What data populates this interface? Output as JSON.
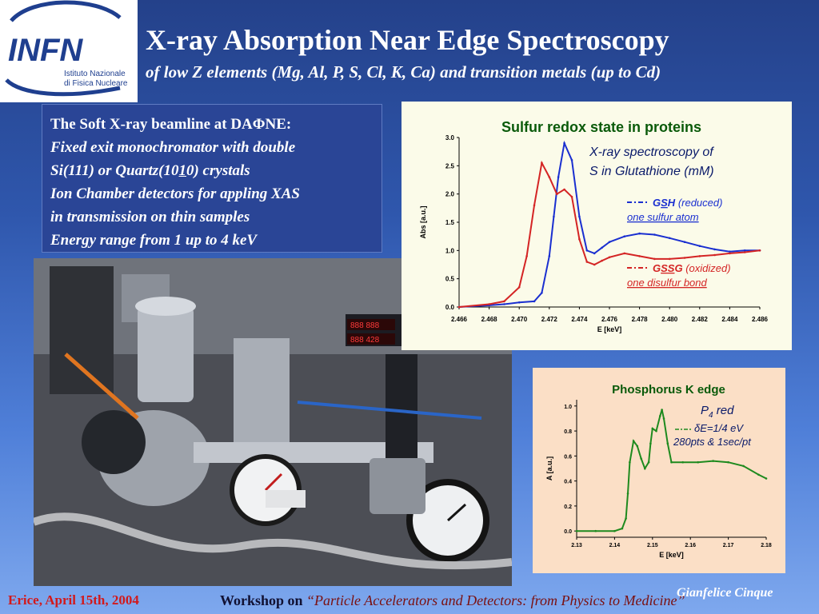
{
  "header": {
    "logo_text": "INFN",
    "logo_line1": "Istituto Nazionale",
    "logo_line2": "di Fisica Nucleare",
    "title": "X-ray Absorption Near Edge Spectroscopy",
    "subtitle": "of low Z elements (Mg, Al, P, S, Cl, K, Ca) and transition metals (up to Cd)"
  },
  "beamline": {
    "heading": "The Soft X-ray beamline at DAΦNE:",
    "line1": "Fixed exit monochromator with double",
    "line2_a": "Si(111) or Quartz(10",
    "line2_u": "1",
    "line2_b": "0) crystals",
    "line3": "Ion Chamber detectors for appling XAS",
    "line4": "in transmission on thin samples",
    "line5": "Energy range from 1 up to 4 keV"
  },
  "photo": {
    "panel1": "888 888",
    "panel2": "888 428"
  },
  "charts": {
    "sulfur": {
      "note1": "X-ray spectroscopy of",
      "note2": "S in Glutathione (mM)",
      "legend_gsh_reduced": "(reduced)",
      "legend_gsh_sub": "one sulfur atom",
      "legend_gssg_oxidized": "(oxidized)",
      "legend_gssg_sub": "one disulfur bond"
    },
    "phosphorus": {
      "note1": "P",
      "note1_sub": "4",
      "note1_rest": " red",
      "note2": "δE=1/4 eV",
      "note3": "280pts & 1sec/pt"
    }
  },
  "chart_data": [
    {
      "type": "line",
      "title": "Sulfur redox state in proteins",
      "xlabel": "E [keV]",
      "ylabel": "Abs [a.u.]",
      "xlim": [
        2.466,
        2.486
      ],
      "ylim": [
        0.0,
        3.0
      ],
      "xticks": [
        "2.466",
        "2.468",
        "2.470",
        "2.472",
        "2.474",
        "2.476",
        "2.478",
        "2.480",
        "2.482",
        "2.484",
        "2.486"
      ],
      "yticks": [
        "0.0",
        "0.5",
        "1.0",
        "1.5",
        "2.0",
        "2.5",
        "3.0"
      ],
      "grid": false,
      "series": [
        {
          "name": "GSH",
          "color": "#1a2fd0",
          "x": [
            2.466,
            2.468,
            2.469,
            2.47,
            2.471,
            2.4715,
            2.472,
            2.4723,
            2.4726,
            2.473,
            2.4735,
            2.474,
            2.4745,
            2.475,
            2.4755,
            2.476,
            2.477,
            2.478,
            2.479,
            2.48,
            2.481,
            2.482,
            2.483,
            2.484,
            2.485,
            2.486
          ],
          "values": [
            0.0,
            0.03,
            0.05,
            0.08,
            0.1,
            0.25,
            0.9,
            1.6,
            2.3,
            2.9,
            2.6,
            1.6,
            1.0,
            0.95,
            1.05,
            1.15,
            1.25,
            1.3,
            1.28,
            1.22,
            1.15,
            1.08,
            1.02,
            0.98,
            1.0,
            1.0
          ]
        },
        {
          "name": "GSSG",
          "color": "#d42424",
          "x": [
            2.466,
            2.468,
            2.469,
            2.47,
            2.4705,
            2.471,
            2.4715,
            2.472,
            2.4725,
            2.473,
            2.4735,
            2.474,
            2.4745,
            2.475,
            2.4755,
            2.476,
            2.477,
            2.478,
            2.479,
            2.48,
            2.481,
            2.482,
            2.483,
            2.484,
            2.485,
            2.486
          ],
          "values": [
            0.0,
            0.05,
            0.1,
            0.35,
            0.9,
            1.8,
            2.55,
            2.3,
            2.0,
            2.08,
            1.95,
            1.2,
            0.8,
            0.75,
            0.82,
            0.88,
            0.95,
            0.9,
            0.85,
            0.85,
            0.87,
            0.9,
            0.92,
            0.95,
            0.97,
            1.0
          ]
        }
      ]
    },
    {
      "type": "line",
      "title": "Phosphorus K edge",
      "xlabel": "E [keV]",
      "ylabel": "A [a.u.]",
      "xlim": [
        2.13,
        2.18
      ],
      "ylim": [
        -0.05,
        1.05
      ],
      "xticks": [
        "2.13",
        "2.14",
        "2.15",
        "2.16",
        "2.17",
        "2.18"
      ],
      "yticks": [
        "0.0",
        "0.2",
        "0.4",
        "0.6",
        "0.8",
        "1.0"
      ],
      "grid": false,
      "series": [
        {
          "name": "P4 red",
          "color": "#1e8a1e",
          "x": [
            2.13,
            2.135,
            2.14,
            2.142,
            2.143,
            2.1435,
            2.144,
            2.145,
            2.146,
            2.147,
            2.148,
            2.149,
            2.1495,
            2.15,
            2.151,
            2.152,
            2.1525,
            2.153,
            2.154,
            2.155,
            2.158,
            2.162,
            2.166,
            2.17,
            2.174,
            2.178,
            2.18
          ],
          "values": [
            0.0,
            0.0,
            0.0,
            0.02,
            0.1,
            0.3,
            0.55,
            0.72,
            0.68,
            0.58,
            0.5,
            0.55,
            0.7,
            0.82,
            0.8,
            0.92,
            0.97,
            0.9,
            0.7,
            0.55,
            0.55,
            0.55,
            0.56,
            0.55,
            0.52,
            0.45,
            0.42
          ]
        }
      ]
    }
  ],
  "footer": {
    "event": "Erice,  April 15th, 2004",
    "workshop_label": "Workshop on ",
    "workshop_title": "“Particle Accelerators and Detectors: from Physics to Medicine”",
    "author": "Gianfelice Cinque"
  }
}
